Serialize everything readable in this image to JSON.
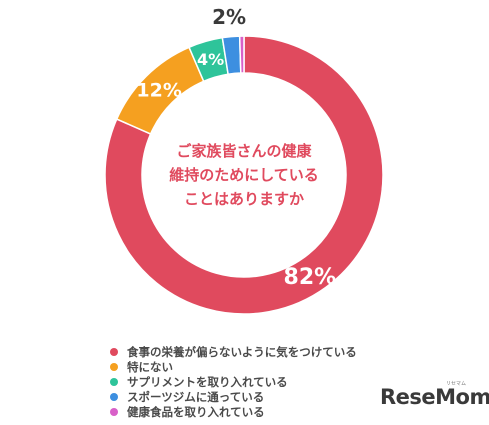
{
  "chart_data": {
    "type": "pie",
    "title": "ご家族皆さんの健康維持のためにしていることはありますか",
    "title_lines": [
      "ご家族皆さんの健康",
      "維持のためにしている",
      "ことはありますか"
    ],
    "categories": [
      "食事の栄養が偏らないように気をつけている",
      "特にない",
      "サプリメントを取り入れている",
      "スポーツジムに通っている",
      "健康食品を取り入れている"
    ],
    "values": [
      82,
      12,
      4,
      2,
      0.5
    ],
    "labels": [
      "82%",
      "12%",
      "4%",
      "2%",
      ""
    ],
    "colors": [
      "#e04a5e",
      "#f5a020",
      "#2ec49a",
      "#3d8fe0",
      "#d860c8"
    ],
    "legend_position": "bottom",
    "donut": true
  },
  "logo": {
    "text": "ReseMom",
    "small": "リセマム"
  }
}
